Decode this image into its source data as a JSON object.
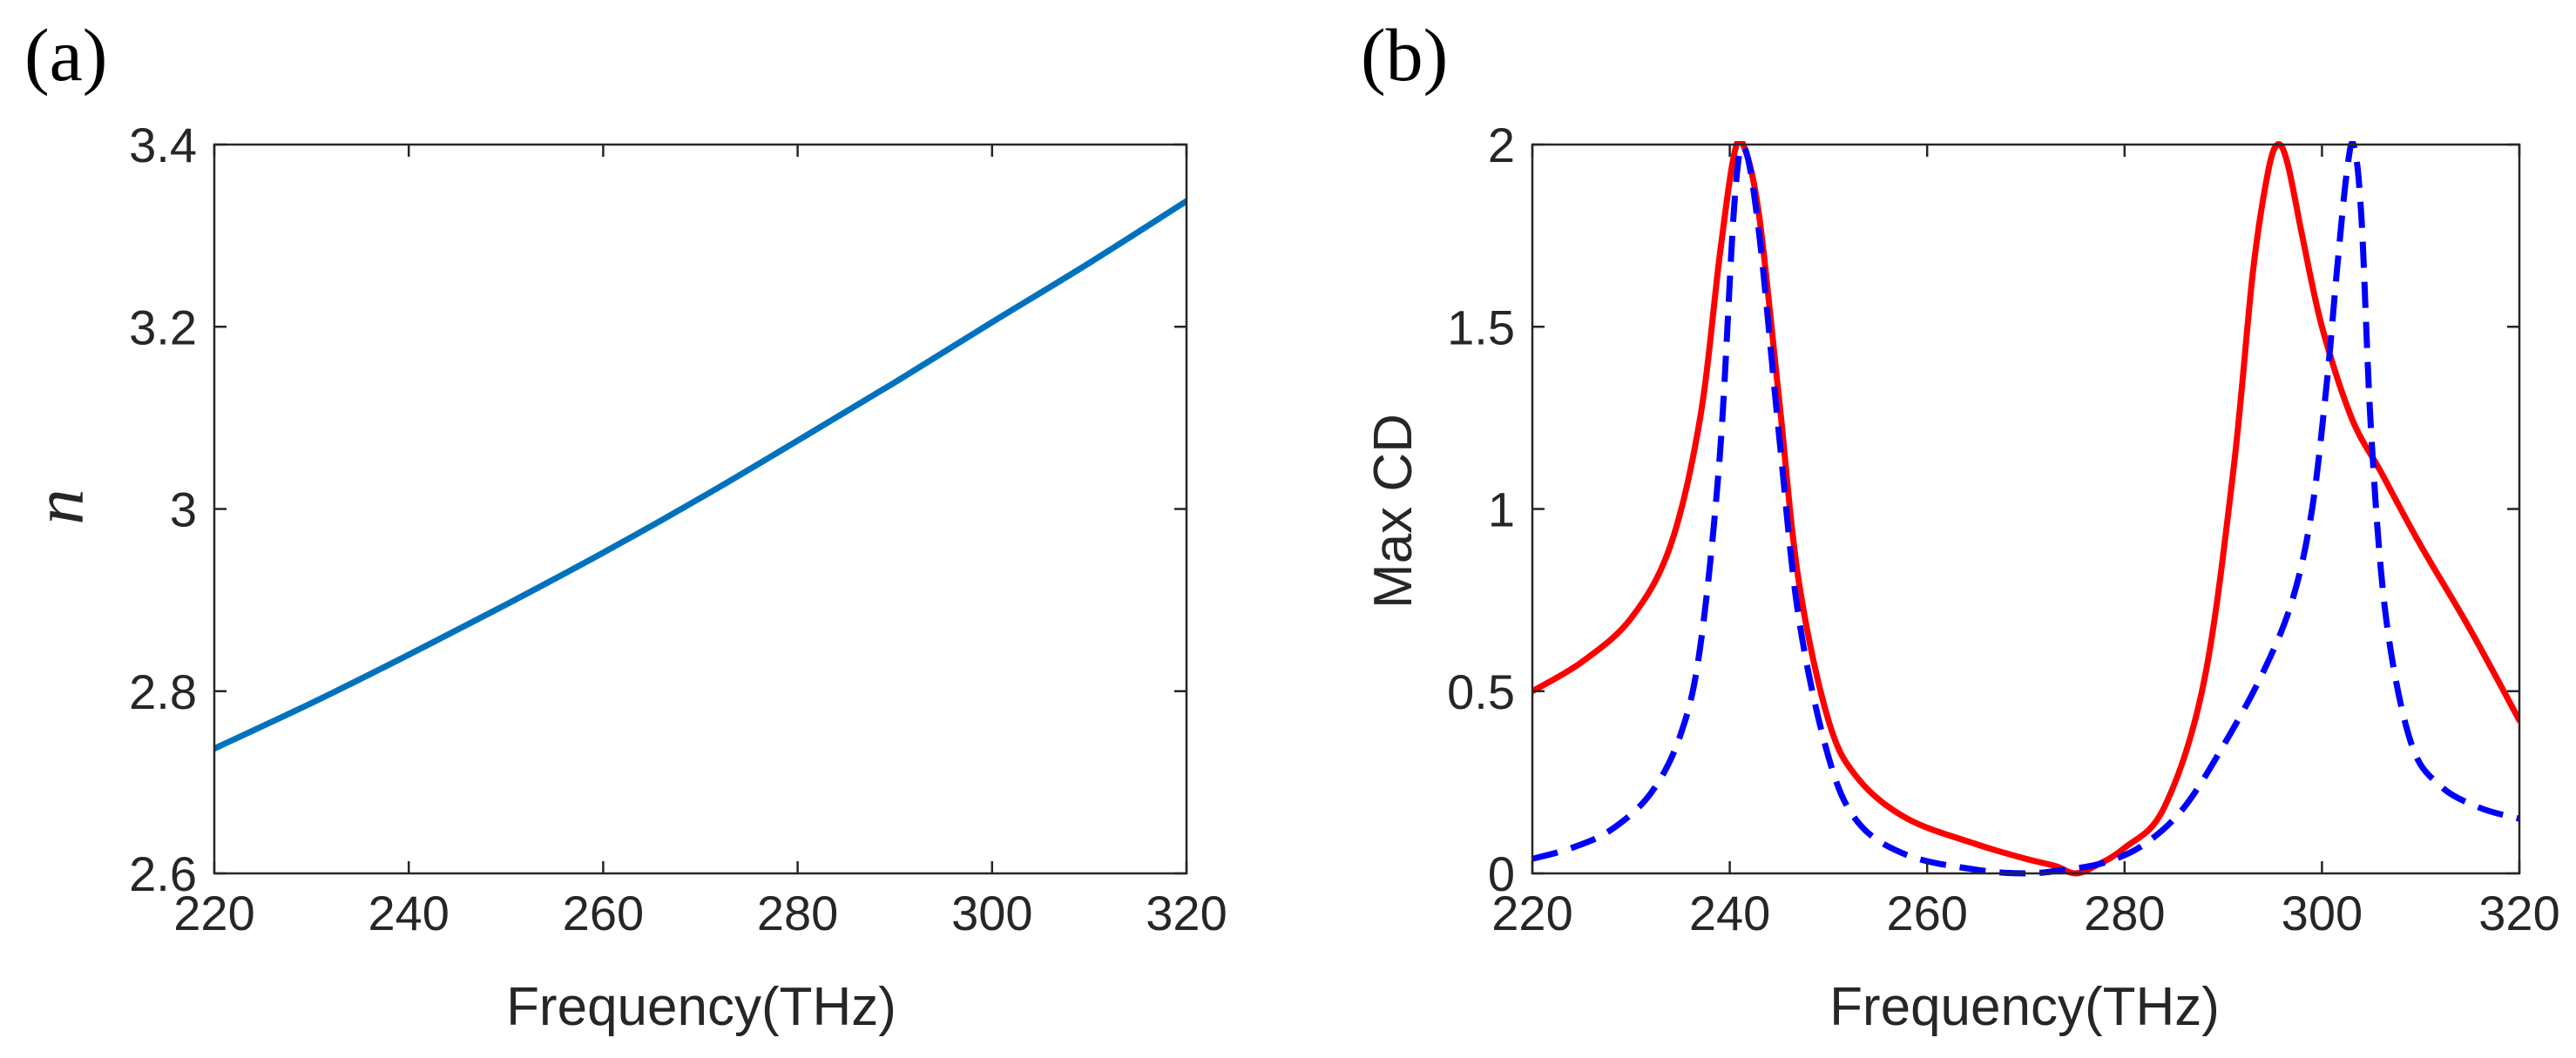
{
  "figure": {
    "panel_labels": [
      "(a)",
      "(b)"
    ]
  },
  "chart_data": [
    {
      "type": "line",
      "panel_label": "(a)",
      "title": "",
      "xlabel": "Frequency(THz)",
      "ylabel": "n",
      "xlim": [
        220,
        320
      ],
      "ylim": [
        2.6,
        3.4
      ],
      "xticks": [
        220,
        240,
        260,
        280,
        300,
        320
      ],
      "xtick_labels": [
        "220",
        "240",
        "260",
        "280",
        "300",
        "320"
      ],
      "yticks": [
        2.6,
        2.8,
        3.0,
        3.2,
        3.4
      ],
      "ytick_labels": [
        "2.6",
        "2.8",
        "3",
        "3.2",
        "3.4"
      ],
      "grid": false,
      "series": [
        {
          "name": "n",
          "color": "#0072BD",
          "style": "solid",
          "x": [
            220,
            230,
            240,
            250,
            260,
            270,
            280,
            290,
            300,
            310,
            320
          ],
          "y": [
            2.737,
            2.787,
            2.84,
            2.895,
            2.952,
            3.012,
            3.075,
            3.139,
            3.205,
            3.27,
            3.338
          ]
        }
      ]
    },
    {
      "type": "line",
      "panel_label": "(b)",
      "title": "",
      "xlabel": "Frequency(THz)",
      "ylabel": "Max CD",
      "xlim": [
        220,
        320
      ],
      "ylim": [
        0,
        2
      ],
      "xticks": [
        220,
        240,
        260,
        280,
        300,
        320
      ],
      "xtick_labels": [
        "220",
        "240",
        "260",
        "280",
        "300",
        "320"
      ],
      "yticks": [
        0,
        0.5,
        1,
        1.5,
        2
      ],
      "ytick_labels": [
        "0",
        "0.5",
        "1",
        "1.5",
        "2"
      ],
      "grid": false,
      "series": [
        {
          "name": "red solid",
          "color": "#FF0000",
          "style": "solid",
          "x": [
            220,
            225,
            230,
            234,
            237,
            239,
            240.5,
            241.5,
            243,
            245,
            247,
            250,
            253,
            258,
            265,
            270,
            273,
            275,
            277,
            280,
            284,
            288,
            291,
            293,
            294.5,
            295.5,
            296.5,
            298,
            300,
            303,
            306,
            310,
            315,
            320
          ],
          "y": [
            0.5,
            0.58,
            0.7,
            0.9,
            1.25,
            1.7,
            1.98,
            1.99,
            1.8,
            1.3,
            0.8,
            0.42,
            0.26,
            0.15,
            0.08,
            0.04,
            0.02,
            0.0,
            0.02,
            0.07,
            0.18,
            0.52,
            1.1,
            1.65,
            1.92,
            2.0,
            1.95,
            1.75,
            1.5,
            1.25,
            1.1,
            0.9,
            0.67,
            0.42
          ]
        },
        {
          "name": "blue dashed",
          "color": "#0000FF",
          "style": "dashed",
          "x": [
            220,
            224,
            228,
            232,
            235,
            237,
            239,
            240.5,
            241.5,
            243,
            245,
            247,
            250,
            253,
            258,
            265,
            270,
            274,
            278,
            282,
            286,
            290,
            294,
            297,
            299,
            300.5,
            301.5,
            302.5,
            303.2,
            304,
            305,
            306.5,
            309,
            312,
            316,
            320
          ],
          "y": [
            0.04,
            0.07,
            0.12,
            0.22,
            0.38,
            0.62,
            1.15,
            1.85,
            1.99,
            1.75,
            1.2,
            0.7,
            0.32,
            0.14,
            0.05,
            0.01,
            0.0,
            0.01,
            0.03,
            0.08,
            0.18,
            0.35,
            0.55,
            0.75,
            1.0,
            1.35,
            1.65,
            1.92,
            2.0,
            1.8,
            1.2,
            0.7,
            0.36,
            0.24,
            0.18,
            0.15
          ]
        }
      ]
    }
  ]
}
